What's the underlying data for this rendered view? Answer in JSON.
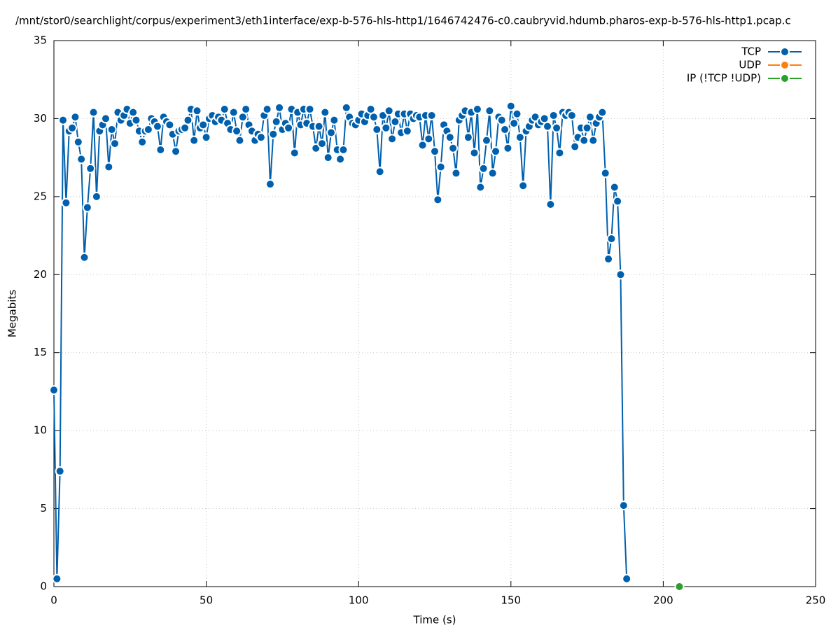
{
  "chart_data": {
    "type": "line",
    "title": "/mnt/stor0/searchlight/corpus/experiment3/eth1interface/exp-b-576-hls-http1/1646742476-c0.caubryvid.hdumb.pharos-exp-b-576-hls-http1.pcap.c",
    "x_label": "Time (s)",
    "y_label": "Megabits",
    "xlim": [
      0,
      250
    ],
    "ylim": [
      0,
      35
    ],
    "xticks": [
      0,
      50,
      100,
      150,
      200,
      250
    ],
    "yticks": [
      0,
      5,
      10,
      15,
      20,
      25,
      30,
      35
    ],
    "grid": true,
    "legend": "top-right",
    "series": [
      {
        "name": "TCP",
        "color": "#0060ad",
        "x": [
          0,
          1,
          2,
          3,
          4,
          5,
          6,
          7,
          8,
          9,
          10,
          11,
          12,
          13,
          14,
          15,
          16,
          17,
          18,
          19,
          20,
          21,
          22,
          23,
          24,
          25,
          26,
          27,
          28,
          29,
          30,
          31,
          32,
          33,
          34,
          35,
          36,
          37,
          38,
          39,
          40,
          41,
          42,
          43,
          44,
          45,
          46,
          47,
          48,
          49,
          50,
          51,
          52,
          53,
          54,
          55,
          56,
          57,
          58,
          59,
          60,
          61,
          62,
          63,
          64,
          65,
          66,
          67,
          68,
          69,
          70,
          71,
          72,
          73,
          74,
          75,
          76,
          77,
          78,
          79,
          80,
          81,
          82,
          83,
          84,
          85,
          86,
          87,
          88,
          89,
          90,
          91,
          92,
          93,
          94,
          95,
          96,
          97,
          98,
          99,
          100,
          101,
          102,
          103,
          104,
          105,
          106,
          107,
          108,
          109,
          110,
          111,
          112,
          113,
          114,
          115,
          116,
          117,
          118,
          119,
          120,
          121,
          122,
          123,
          124,
          125,
          126,
          127,
          128,
          129,
          130,
          131,
          132,
          133,
          134,
          135,
          136,
          137,
          138,
          139,
          140,
          141,
          142,
          143,
          144,
          145,
          146,
          147,
          148,
          149,
          150,
          151,
          152,
          153,
          154,
          155,
          156,
          157,
          158,
          159,
          160,
          161,
          162,
          163,
          164,
          165,
          166,
          167,
          168,
          169,
          170,
          171,
          172,
          173,
          174,
          175,
          176,
          177,
          178,
          179,
          180,
          181,
          182,
          183,
          184,
          185,
          186,
          187,
          188
        ],
        "values": [
          12.6,
          0.5,
          7.4,
          29.9,
          24.6,
          29.2,
          29.4,
          30.1,
          28.5,
          27.4,
          21.1,
          24.3,
          26.8,
          30.4,
          25.0,
          29.2,
          29.6,
          30.0,
          26.9,
          29.3,
          28.4,
          30.4,
          29.9,
          30.2,
          30.6,
          29.7,
          30.4,
          29.9,
          29.2,
          28.5,
          29.2,
          29.3,
          30.0,
          29.8,
          29.5,
          28.0,
          30.1,
          29.8,
          29.6,
          29.0,
          27.9,
          29.2,
          29.3,
          29.4,
          29.9,
          30.6,
          28.6,
          30.5,
          29.4,
          29.6,
          28.8,
          30.0,
          30.2,
          29.8,
          30.1,
          29.9,
          30.6,
          29.7,
          29.3,
          30.4,
          29.2,
          28.6,
          30.1,
          30.6,
          29.6,
          29.2,
          28.6,
          29.0,
          28.8,
          30.2,
          30.6,
          25.8,
          29.0,
          29.8,
          30.7,
          29.3,
          29.7,
          29.4,
          30.6,
          27.8,
          30.4,
          29.6,
          30.6,
          29.7,
          30.6,
          29.5,
          28.1,
          29.5,
          28.4,
          30.4,
          27.5,
          29.1,
          29.9,
          28.0,
          27.4,
          28.0,
          30.7,
          30.1,
          29.7,
          29.6,
          29.9,
          30.3,
          29.8,
          30.2,
          30.6,
          30.1,
          29.3,
          26.6,
          30.2,
          29.4,
          30.5,
          28.7,
          29.8,
          30.3,
          29.1,
          30.3,
          29.2,
          30.3,
          30.0,
          30.2,
          30.1,
          28.3,
          30.2,
          28.7,
          30.2,
          27.9,
          24.8,
          26.9,
          29.6,
          29.2,
          28.8,
          28.1,
          26.5,
          29.9,
          30.2,
          30.5,
          28.8,
          30.4,
          27.8,
          30.6,
          25.6,
          26.8,
          28.6,
          30.5,
          26.5,
          27.9,
          30.1,
          29.9,
          29.3,
          28.1,
          30.8,
          29.7,
          30.3,
          28.8,
          25.7,
          29.2,
          29.5,
          29.9,
          30.1,
          29.6,
          29.8,
          30.0,
          29.5,
          24.5,
          30.2,
          29.4,
          27.8,
          30.4,
          30.2,
          30.4,
          30.2,
          28.2,
          28.8,
          29.4,
          28.6,
          29.4,
          30.1,
          28.6,
          29.7,
          30.1,
          30.4,
          26.5,
          21.0,
          22.3,
          25.6,
          24.7,
          20.0,
          5.2,
          0.5
        ]
      },
      {
        "name": "UDP",
        "color": "#ff7f0e",
        "x": [],
        "values": []
      },
      {
        "name": "IP (!TCP  !UDP)",
        "color": "#2ca02c",
        "x": [
          205.3
        ],
        "values": [
          0
        ]
      }
    ]
  }
}
